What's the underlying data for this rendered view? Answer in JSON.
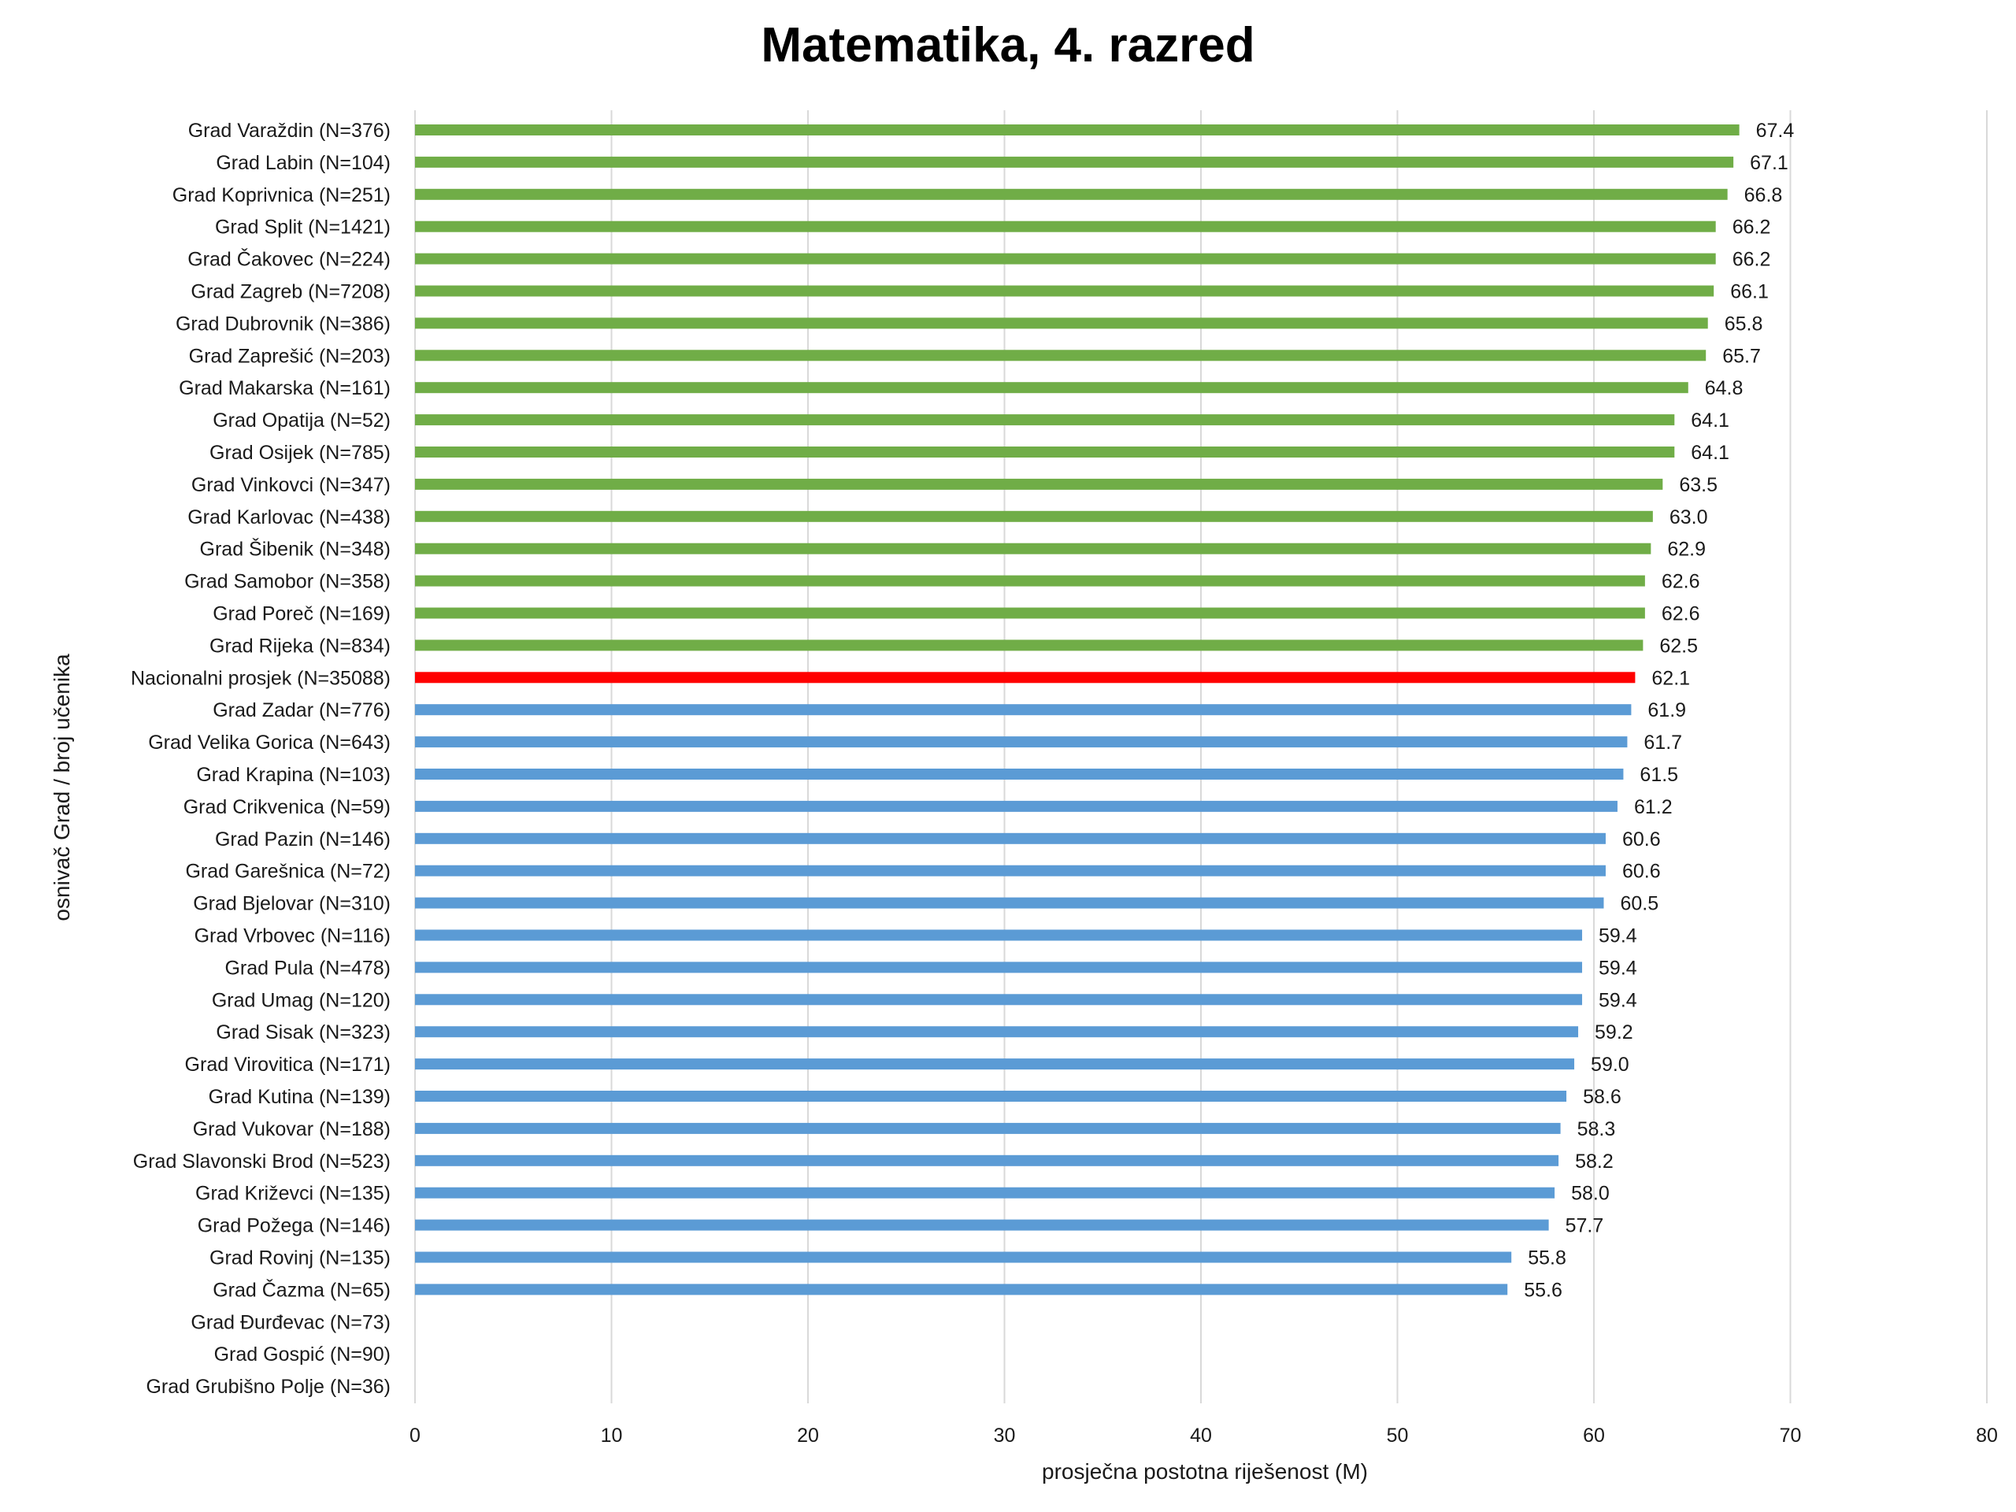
{
  "chart_data": {
    "type": "bar",
    "orientation": "horizontal",
    "title": "Matematika, 4. razred",
    "xlabel": "prosječna postotna riješenost (M)",
    "ylabel": "osnivač Grad / broj učenika",
    "xlim": [
      0,
      80
    ],
    "xticks": [
      0,
      10,
      20,
      30,
      40,
      50,
      60,
      70,
      80
    ],
    "grid": "vertical",
    "colors": {
      "above": "#70ad47",
      "national": "#ff0000",
      "below": "#5b9bd5",
      "national_label": "#ff0000",
      "grid": "#d9d9d9"
    },
    "categories": [
      "Grad Varaždin (N=376)",
      "Grad Labin (N=104)",
      "Grad Koprivnica (N=251)",
      "Grad Split (N=1421)",
      "Grad Čakovec (N=224)",
      "Grad Zagreb (N=7208)",
      "Grad Dubrovnik (N=386)",
      "Grad Zaprešić (N=203)",
      "Grad Makarska (N=161)",
      "Grad Opatija (N=52)",
      "Grad Osijek (N=785)",
      "Grad Vinkovci (N=347)",
      "Grad Karlovac (N=438)",
      "Grad Šibenik (N=348)",
      "Grad Samobor (N=358)",
      "Grad Poreč (N=169)",
      "Grad Rijeka (N=834)",
      "Nacionalni prosjek (N=35088)",
      "Grad Zadar (N=776)",
      "Grad Velika Gorica (N=643)",
      "Grad Krapina (N=103)",
      "Grad Crikvenica (N=59)",
      "Grad Pazin (N=146)",
      "Grad Garešnica (N=72)",
      "Grad Bjelovar (N=310)",
      "Grad Vrbovec (N=116)",
      "Grad Pula (N=478)",
      "Grad Umag (N=120)",
      "Grad Sisak (N=323)",
      "Grad Virovitica (N=171)",
      "Grad Kutina (N=139)",
      "Grad Vukovar (N=188)",
      "Grad Slavonski Brod (N=523)",
      "Grad Križevci (N=135)",
      "Grad Požega (N=146)",
      "Grad Rovinj (N=135)",
      "Grad Čazma (N=65)",
      "Grad Đurđevac (N=73)",
      "Grad Gospić (N=90)",
      "Grad Grubišno Polje (N=36)"
    ],
    "values": [
      67.4,
      67.1,
      66.8,
      66.2,
      66.2,
      66.1,
      65.8,
      65.7,
      64.8,
      64.1,
      64.1,
      63.5,
      63.0,
      62.9,
      62.6,
      62.6,
      62.5,
      62.1,
      61.9,
      61.7,
      61.5,
      61.2,
      60.6,
      60.6,
      60.5,
      59.4,
      59.4,
      59.4,
      59.2,
      59.0,
      58.6,
      58.3,
      58.2,
      58.0,
      57.7,
      55.8,
      55.6,
      null,
      null,
      null
    ],
    "value_labels": [
      "67.4",
      "67.1",
      "66.8",
      "66.2",
      "66.2",
      "66.1",
      "65.8",
      "65.7",
      "64.8",
      "64.1",
      "64.1",
      "63.5",
      "63.0",
      "62.9",
      "62.6",
      "62.6",
      "62.5",
      "62.1",
      "61.9",
      "61.7",
      "61.5",
      "61.2",
      "60.6",
      "60.6",
      "60.5",
      "59.4",
      "59.4",
      "59.4",
      "59.2",
      "59.0",
      "58.6",
      "58.3",
      "58.2",
      "58.0",
      "57.7",
      "55.8",
      "55.6",
      "",
      "",
      ""
    ],
    "national_index": 17
  }
}
